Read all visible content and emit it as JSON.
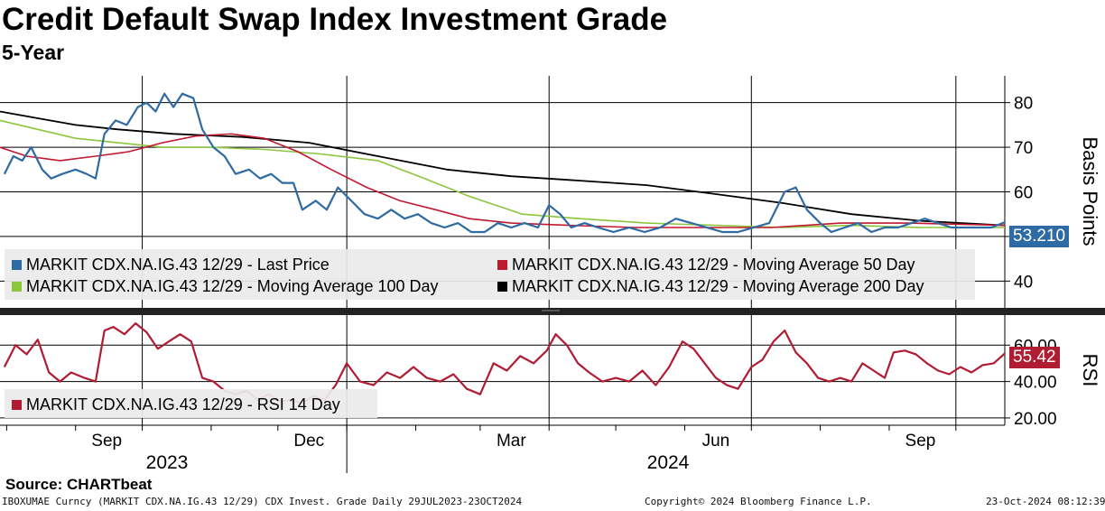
{
  "title": "Credit Default Swap Index Investment Grade",
  "subtitle": "5-Year",
  "source": "Source: CHARTbeat",
  "footer": {
    "left": "IBOXUMAE Curncy (MARKIT CDX.NA.IG.43 12/29) CDX Invest. Grade  Daily 29JUL2023-23OCT2024",
    "center": "Copyright© 2024 Bloomberg Finance L.P.",
    "right": "23-Oct-2024 08:12:39"
  },
  "colors": {
    "last_price": "#2e6aa3",
    "ma50": "#c0192f",
    "ma100": "#8cc63f",
    "ma200": "#000000",
    "rsi": "#b01c32"
  },
  "chart_data": [
    {
      "type": "line",
      "ylabel": "Basis Points",
      "ylim": [
        34,
        86
      ],
      "yticks": [
        40,
        50,
        60,
        70,
        80
      ],
      "ytick_labels": [
        "40",
        "50",
        "60",
        "70",
        "80"
      ],
      "xlim": [
        "2023-07-29",
        "2024-10-23"
      ],
      "x_ticks": [
        "Sep",
        "Dec",
        "Mar",
        "Jun",
        "Sep"
      ],
      "year_labels": [
        "2023",
        "2024"
      ],
      "grid": true,
      "legend_position": "bottom-left",
      "last_value_label": "53.210",
      "series": [
        {
          "name": "MARKIT CDX.NA.IG.43 12/29 - Last Price",
          "points": [
            [
              "2023-07-31",
              64
            ],
            [
              "2023-08-04",
              68
            ],
            [
              "2023-08-08",
              67
            ],
            [
              "2023-08-12",
              70
            ],
            [
              "2023-08-17",
              65
            ],
            [
              "2023-08-21",
              63
            ],
            [
              "2023-08-26",
              64
            ],
            [
              "2023-09-01",
              65
            ],
            [
              "2023-09-06",
              64
            ],
            [
              "2023-09-10",
              63
            ],
            [
              "2023-09-14",
              73
            ],
            [
              "2023-09-19",
              76
            ],
            [
              "2023-09-24",
              75
            ],
            [
              "2023-09-29",
              79
            ],
            [
              "2023-10-03",
              80
            ],
            [
              "2023-10-07",
              78
            ],
            [
              "2023-10-11",
              82
            ],
            [
              "2023-10-15",
              79
            ],
            [
              "2023-10-19",
              82
            ],
            [
              "2023-10-24",
              81
            ],
            [
              "2023-10-28",
              74
            ],
            [
              "2023-11-02",
              70
            ],
            [
              "2023-11-07",
              68
            ],
            [
              "2023-11-12",
              64
            ],
            [
              "2023-11-18",
              65
            ],
            [
              "2023-11-23",
              63
            ],
            [
              "2023-11-28",
              64
            ],
            [
              "2023-12-03",
              62
            ],
            [
              "2023-12-08",
              62
            ],
            [
              "2023-12-12",
              56
            ],
            [
              "2023-12-18",
              58
            ],
            [
              "2023-12-23",
              56
            ],
            [
              "2023-12-28",
              61
            ],
            [
              "2024-01-03",
              58
            ],
            [
              "2024-01-09",
              55
            ],
            [
              "2024-01-15",
              54
            ],
            [
              "2024-01-21",
              56
            ],
            [
              "2024-01-27",
              54
            ],
            [
              "2024-02-02",
              55
            ],
            [
              "2024-02-08",
              53
            ],
            [
              "2024-02-14",
              52
            ],
            [
              "2024-02-20",
              53
            ],
            [
              "2024-02-26",
              51
            ],
            [
              "2024-03-03",
              51
            ],
            [
              "2024-03-09",
              53
            ],
            [
              "2024-03-15",
              52
            ],
            [
              "2024-03-21",
              53
            ],
            [
              "2024-03-27",
              52
            ],
            [
              "2024-04-01",
              57
            ],
            [
              "2024-04-06",
              55
            ],
            [
              "2024-04-11",
              52
            ],
            [
              "2024-04-17",
              53
            ],
            [
              "2024-04-23",
              52
            ],
            [
              "2024-04-30",
              51
            ],
            [
              "2024-05-07",
              52
            ],
            [
              "2024-05-14",
              51
            ],
            [
              "2024-05-21",
              52
            ],
            [
              "2024-05-28",
              54
            ],
            [
              "2024-06-04",
              53
            ],
            [
              "2024-06-11",
              52
            ],
            [
              "2024-06-18",
              51
            ],
            [
              "2024-06-25",
              51
            ],
            [
              "2024-07-02",
              52
            ],
            [
              "2024-07-09",
              53
            ],
            [
              "2024-07-16",
              60
            ],
            [
              "2024-07-21",
              61
            ],
            [
              "2024-07-26",
              56
            ],
            [
              "2024-08-01",
              53
            ],
            [
              "2024-08-06",
              51
            ],
            [
              "2024-08-12",
              52
            ],
            [
              "2024-08-18",
              53
            ],
            [
              "2024-08-24",
              51
            ],
            [
              "2024-08-30",
              52
            ],
            [
              "2024-09-05",
              52
            ],
            [
              "2024-09-11",
              53
            ],
            [
              "2024-09-17",
              54
            ],
            [
              "2024-09-23",
              53
            ],
            [
              "2024-09-29",
              52
            ],
            [
              "2024-10-05",
              52
            ],
            [
              "2024-10-11",
              52
            ],
            [
              "2024-10-17",
              52
            ],
            [
              "2024-10-23",
              53.21
            ]
          ]
        },
        {
          "name": "MARKIT CDX.NA.IG.43 12/29 - Moving Average 50 Day",
          "points": [
            [
              "2023-07-29",
              70
            ],
            [
              "2023-08-10",
              68
            ],
            [
              "2023-08-25",
              67
            ],
            [
              "2023-09-10",
              68
            ],
            [
              "2023-09-25",
              69
            ],
            [
              "2023-10-10",
              71
            ],
            [
              "2023-10-25",
              72.5
            ],
            [
              "2023-11-10",
              73
            ],
            [
              "2023-11-25",
              72
            ],
            [
              "2023-12-10",
              69
            ],
            [
              "2023-12-25",
              65
            ],
            [
              "2024-01-10",
              61
            ],
            [
              "2024-01-25",
              58
            ],
            [
              "2024-02-10",
              56
            ],
            [
              "2024-02-25",
              54
            ],
            [
              "2024-03-15",
              53
            ],
            [
              "2024-04-10",
              52.5
            ],
            [
              "2024-05-10",
              52
            ],
            [
              "2024-06-10",
              52
            ],
            [
              "2024-07-10",
              52
            ],
            [
              "2024-08-10",
              53
            ],
            [
              "2024-09-10",
              53
            ],
            [
              "2024-10-23",
              52.5
            ]
          ]
        },
        {
          "name": "MARKIT CDX.NA.IG.43 12/29 - Moving Average 100 Day",
          "points": [
            [
              "2023-07-29",
              76
            ],
            [
              "2023-08-15",
              74
            ],
            [
              "2023-09-01",
              72
            ],
            [
              "2023-09-20",
              71
            ],
            [
              "2023-10-10",
              70
            ],
            [
              "2023-11-01",
              70
            ],
            [
              "2023-11-25",
              69.5
            ],
            [
              "2023-12-20",
              68.5
            ],
            [
              "2024-01-15",
              67
            ],
            [
              "2024-02-05",
              63
            ],
            [
              "2024-02-25",
              59
            ],
            [
              "2024-03-20",
              55
            ],
            [
              "2024-04-15",
              54
            ],
            [
              "2024-05-15",
              53
            ],
            [
              "2024-06-15",
              52.5
            ],
            [
              "2024-07-15",
              52
            ],
            [
              "2024-08-15",
              52.5
            ],
            [
              "2024-09-15",
              52
            ],
            [
              "2024-10-23",
              52
            ]
          ]
        },
        {
          "name": "MARKIT CDX.NA.IG.43 12/29 - Moving Average 200 Day",
          "points": [
            [
              "2023-07-29",
              78
            ],
            [
              "2023-08-15",
              76.5
            ],
            [
              "2023-09-01",
              75
            ],
            [
              "2023-09-20",
              74
            ],
            [
              "2023-10-15",
              73
            ],
            [
              "2023-11-15",
              72.3
            ],
            [
              "2023-12-15",
              71
            ],
            [
              "2024-01-15",
              68
            ],
            [
              "2024-02-15",
              65
            ],
            [
              "2024-03-15",
              63.5
            ],
            [
              "2024-04-15",
              62.5
            ],
            [
              "2024-05-15",
              61.5
            ],
            [
              "2024-06-15",
              59.5
            ],
            [
              "2024-07-15",
              57.5
            ],
            [
              "2024-08-15",
              55
            ],
            [
              "2024-09-15",
              53.5
            ],
            [
              "2024-10-23",
              52.5
            ]
          ]
        }
      ]
    },
    {
      "type": "line",
      "ylabel": "RSI",
      "ylim": [
        16,
        76
      ],
      "yticks": [
        20,
        40,
        60
      ],
      "ytick_labels": [
        "20.00",
        "40.00",
        "60.00"
      ],
      "last_value_label": "55.42",
      "series": [
        {
          "name": "MARKIT CDX.NA.IG.43 12/29 - RSI 14 Day",
          "points": [
            [
              "2023-07-31",
              48
            ],
            [
              "2023-08-05",
              60
            ],
            [
              "2023-08-10",
              55
            ],
            [
              "2023-08-15",
              63
            ],
            [
              "2023-08-20",
              45
            ],
            [
              "2023-08-25",
              40
            ],
            [
              "2023-08-30",
              45
            ],
            [
              "2023-09-05",
              42
            ],
            [
              "2023-09-10",
              40
            ],
            [
              "2023-09-14",
              68
            ],
            [
              "2023-09-18",
              70
            ],
            [
              "2023-09-23",
              66
            ],
            [
              "2023-09-28",
              72
            ],
            [
              "2023-10-03",
              67
            ],
            [
              "2023-10-08",
              58
            ],
            [
              "2023-10-13",
              62
            ],
            [
              "2023-10-18",
              66
            ],
            [
              "2023-10-23",
              62
            ],
            [
              "2023-10-28",
              42
            ],
            [
              "2023-11-02",
              40
            ],
            [
              "2023-11-07",
              35
            ],
            [
              "2023-11-12",
              33
            ],
            [
              "2023-11-17",
              35
            ],
            [
              "2023-11-22",
              30
            ],
            [
              "2023-11-27",
              33
            ],
            [
              "2023-12-02",
              29
            ],
            [
              "2023-12-07",
              30
            ],
            [
              "2023-12-12",
              28
            ],
            [
              "2023-12-17",
              32
            ],
            [
              "2023-12-22",
              30
            ],
            [
              "2023-12-27",
              38
            ],
            [
              "2024-01-01",
              50
            ],
            [
              "2024-01-07",
              40
            ],
            [
              "2024-01-13",
              38
            ],
            [
              "2024-01-19",
              45
            ],
            [
              "2024-01-25",
              42
            ],
            [
              "2024-01-31",
              48
            ],
            [
              "2024-02-06",
              42
            ],
            [
              "2024-02-12",
              40
            ],
            [
              "2024-02-18",
              44
            ],
            [
              "2024-02-24",
              36
            ],
            [
              "2024-03-01",
              33
            ],
            [
              "2024-03-07",
              50
            ],
            [
              "2024-03-13",
              46
            ],
            [
              "2024-03-19",
              54
            ],
            [
              "2024-03-25",
              50
            ],
            [
              "2024-03-31",
              57
            ],
            [
              "2024-04-04",
              66
            ],
            [
              "2024-04-09",
              60
            ],
            [
              "2024-04-14",
              50
            ],
            [
              "2024-04-19",
              45
            ],
            [
              "2024-04-25",
              40
            ],
            [
              "2024-05-01",
              42
            ],
            [
              "2024-05-07",
              40
            ],
            [
              "2024-05-13",
              46
            ],
            [
              "2024-05-19",
              38
            ],
            [
              "2024-05-25",
              48
            ],
            [
              "2024-05-31",
              62
            ],
            [
              "2024-06-05",
              58
            ],
            [
              "2024-06-10",
              50
            ],
            [
              "2024-06-15",
              42
            ],
            [
              "2024-06-20",
              38
            ],
            [
              "2024-06-25",
              36
            ],
            [
              "2024-07-01",
              48
            ],
            [
              "2024-07-06",
              52
            ],
            [
              "2024-07-11",
              62
            ],
            [
              "2024-07-16",
              68
            ],
            [
              "2024-07-21",
              56
            ],
            [
              "2024-07-26",
              50
            ],
            [
              "2024-07-31",
              42
            ],
            [
              "2024-08-05",
              40
            ],
            [
              "2024-08-10",
              42
            ],
            [
              "2024-08-15",
              40
            ],
            [
              "2024-08-20",
              50
            ],
            [
              "2024-08-25",
              46
            ],
            [
              "2024-08-30",
              42
            ],
            [
              "2024-09-03",
              56
            ],
            [
              "2024-09-08",
              57
            ],
            [
              "2024-09-13",
              55
            ],
            [
              "2024-09-18",
              50
            ],
            [
              "2024-09-23",
              46
            ],
            [
              "2024-09-28",
              44
            ],
            [
              "2024-10-03",
              48
            ],
            [
              "2024-10-08",
              45
            ],
            [
              "2024-10-13",
              49
            ],
            [
              "2024-10-18",
              50
            ],
            [
              "2024-10-23",
              55.42
            ]
          ]
        }
      ]
    }
  ]
}
